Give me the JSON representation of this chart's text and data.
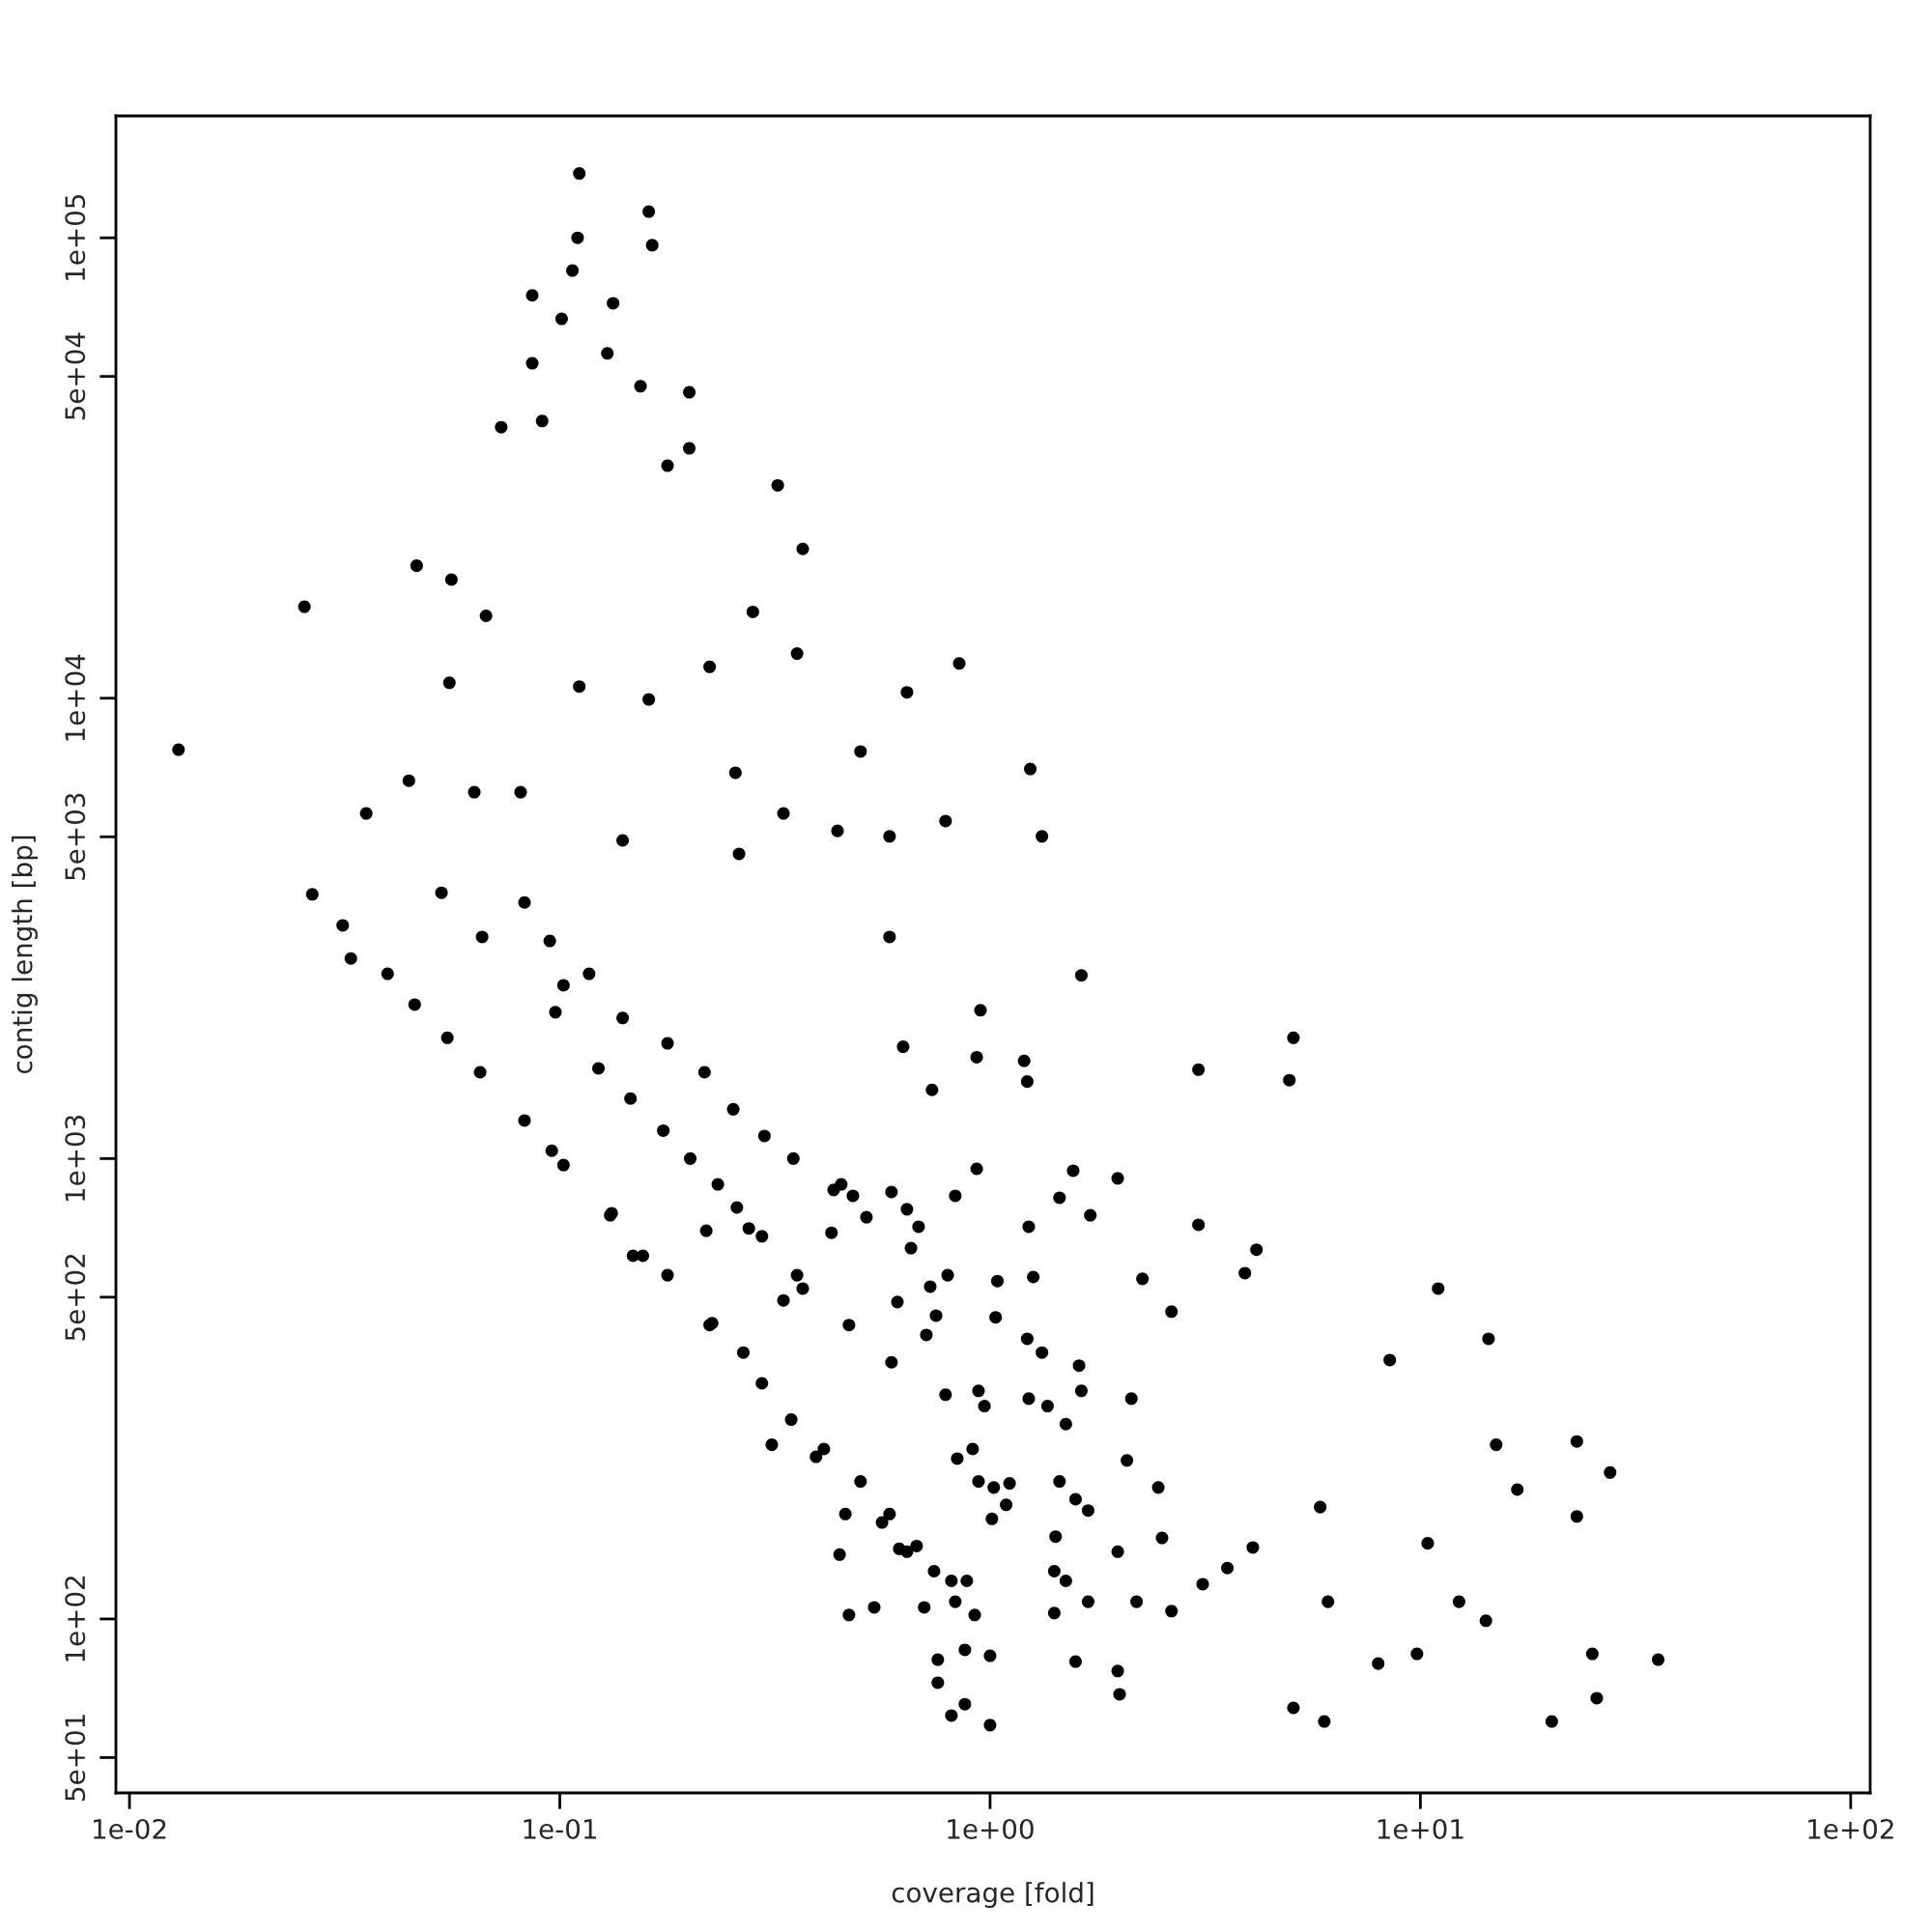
{
  "chart_data": {
    "type": "scatter",
    "xlabel": "coverage [fold]",
    "ylabel": "contig length [bp]",
    "log": "xy",
    "grid": false,
    "marker": "circle",
    "color": "#000000",
    "xlim": [
      0.0093,
      111
    ],
    "ylim": [
      41.9,
      184000
    ],
    "xticks": [
      {
        "value": 0.01,
        "label": "1e-02"
      },
      {
        "value": 0.1,
        "label": "1e-01"
      },
      {
        "value": 1,
        "label": "1e+00"
      },
      {
        "value": 10,
        "label": "1e+01"
      },
      {
        "value": 100,
        "label": "1e+02"
      }
    ],
    "yticks": [
      {
        "value": 50,
        "label": "5e+01"
      },
      {
        "value": 100,
        "label": "1e+02"
      },
      {
        "value": 500,
        "label": "5e+02"
      },
      {
        "value": 1000,
        "label": "1e+03"
      },
      {
        "value": 5000,
        "label": "5e+03"
      },
      {
        "value": 10000,
        "label": "1e+04"
      },
      {
        "value": 50000,
        "label": "5e+04"
      },
      {
        "value": 100000,
        "label": "1e+05"
      }
    ],
    "x": [
      0.111,
      0.161,
      0.164,
      0.11,
      0.107,
      0.0863,
      0.133,
      0.101,
      0.0863,
      0.129,
      0.154,
      0.2,
      0.091,
      0.0731,
      0.2,
      0.178,
      0.321,
      0.367,
      0.0465,
      0.0255,
      0.056,
      0.0674,
      0.281,
      0.223,
      0.356,
      0.848,
      0.0554,
      0.111,
      0.641,
      0.161,
      0.013,
      0.0446,
      0.5,
      1.24,
      1.32,
      0.0355,
      0.0633,
      0.0811,
      0.14,
      0.256,
      0.331,
      0.261,
      0.442,
      0.788,
      0.584,
      1.63,
      0.0266,
      0.0313,
      0.0327,
      0.0398,
      0.046,
      0.0548,
      0.0653,
      0.0828,
      0.0958,
      0.102,
      0.0531,
      0.066,
      0.0828,
      0.0948,
      0.102,
      0.117,
      0.14,
      0.178,
      0.217,
      0.253,
      0.299,
      0.349,
      0.433,
      0.516,
      0.655,
      0.797,
      1.03,
      1.32,
      1.63,
      0.0977,
      0.123,
      0.146,
      0.174,
      0.201,
      0.233,
      0.258,
      0.295,
      0.367,
      0.47,
      0.59,
      0.788,
      0.911,
      1.11,
      1.42,
      0.132,
      0.156,
      0.178,
      0.223,
      0.267,
      0.295,
      0.345,
      0.411,
      0.5,
      0.561,
      0.641,
      0.741,
      1.01,
      1.0,
      1.0,
      1.22,
      1.61,
      2.64,
      3.05,
      5.07,
      4.96,
      11.0,
      14.4,
      8.49,
      15.0,
      23.1,
      27.6,
      16.8,
      23.1,
      35.7,
      20.2,
      25.7,
      5.85,
      10.4,
      5.07,
      5.98,
      4.08,
      3.56,
      7.98,
      9.82,
      12.3,
      14.2,
      25.1,
      6.1,
      3.12,
      2.64,
      2.0,
      1.98,
      1.58,
      1.41,
      1.69,
      2.19,
      1.98,
      2.46,
      2.51,
      2.13,
      1.98,
      1.71,
      2.26,
      3.05,
      4.16,
      3.91,
      0.95,
      1.2,
      1.22,
      1.56,
      1.45,
      1.23,
      1.26,
      1.04,
      1.23,
      1.36,
      1.5,
      2.08,
      1.45,
      1.58,
      1.69,
      1.5,
      1.41,
      0.94,
      0.97,
      0.931,
      0.83,
      0.733,
      0.931,
      0.628,
      0.584,
      1.09,
      1.02,
      0.94,
      0.839,
      0.883,
      0.813,
      0.703,
      0.756,
      0.756,
      0.813,
      0.874,
      0.874,
      0.83,
      0.921,
      0.615,
      0.675,
      0.538,
      0.47,
      0.447,
      0.461,
      0.584,
      0.311,
      0.394,
      0.226,
      0.331,
      0.356,
      0.275,
      0.219,
      0.131,
      0.148,
      0.609,
      0.711,
      0.749,
      0.726,
      0.428,
      0.451,
      0.48,
      0.59,
      0.641,
      0.682
    ],
    "values": [
      138000,
      114000,
      96400,
      100000,
      84900,
      75000,
      72100,
      66700,
      53400,
      56100,
      47600,
      46200,
      40000,
      38800,
      34900,
      32000,
      29000,
      21100,
      19400,
      15800,
      18100,
      15100,
      15400,
      11700,
      12500,
      11900,
      10800,
      10600,
      10300,
      9940,
      7730,
      6620,
      7660,
      7020,
      5010,
      5620,
      6250,
      6250,
      4910,
      6890,
      5620,
      4590,
      5150,
      5410,
      5010,
      2500,
      3750,
      3210,
      2720,
      2520,
      2160,
      1830,
      1540,
      1210,
      1040,
      968,
      3780,
      3030,
      3600,
      2970,
      2380,
      2520,
      2020,
      1780,
      1540,
      1280,
      1120,
      1000,
      855,
      746,
      639,
      558,
      452,
      379,
      313,
      2080,
      1570,
      1350,
      1150,
      1000,
      879,
      783,
      678,
      522,
      435,
      361,
      307,
      234,
      197,
      151,
      761,
      615,
      558,
      435,
      379,
      325,
      271,
      234,
      199,
      162,
      140,
      127,
      165,
      58.8,
      83.2,
      406,
      355,
      465,
      1560,
      1830,
      1480,
      522,
      406,
      365,
      239,
      243,
      208,
      191,
      167,
      81.6,
      59.9,
      67.3,
      175,
      146,
      64.1,
      59.9,
      143,
      129,
      80.0,
      84.0,
      109,
      99.1,
      84.0,
      109,
      119,
      104,
      68.6,
      77.1,
      80.8,
      127,
      109,
      109,
      140,
      193,
      150,
      301,
      906,
      753,
      548,
      718,
      634,
      564,
      2100,
      1630,
      1470,
      941,
      822,
      711,
      553,
      542,
      301,
      290,
      265,
      221,
      199,
      182,
      172,
      121,
      103,
      313,
      290,
      950,
      830,
      1410,
      1660,
      1750,
      3030,
      177,
      193,
      199,
      223,
      121,
      121,
      106,
      81.6,
      72.7,
      61.7,
      65.3,
      85.7,
      109,
      102,
      142,
      144,
      106,
      102,
      138,
      169,
      169,
      239,
      225,
      439,
      492,
      558,
      705,
      697,
      753,
      615,
      488,
      414,
      456,
      527,
      690,
      879,
      830,
      846,
      776,
      711
    ]
  }
}
